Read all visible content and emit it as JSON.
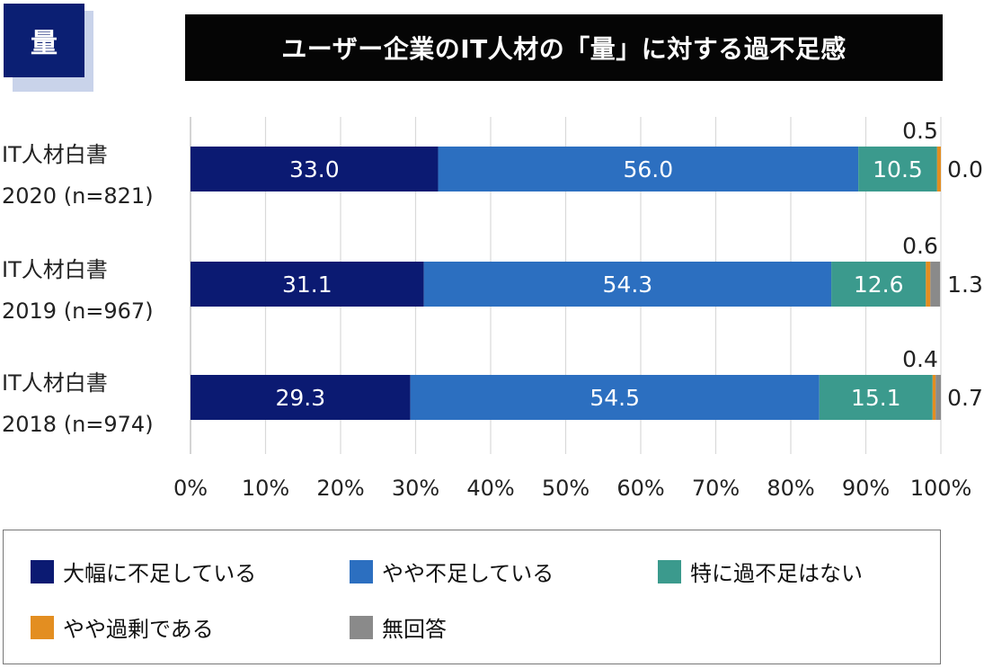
{
  "badge": "量",
  "title": "ユーザー企業のIT人材の「量」に対する過不足感",
  "chart_data": {
    "type": "bar",
    "orientation": "horizontal",
    "stacked": true,
    "title": "ユーザー企業のIT人材の「量」に対する過不足感",
    "categories": [
      [
        "IT人材白書",
        "2020 (n=821)"
      ],
      [
        "IT人材白書",
        "2019 (n=967)"
      ],
      [
        "IT人材白書",
        "2018 (n=974)"
      ]
    ],
    "series": [
      {
        "name": "大幅に不足している",
        "color": "#0b1a72",
        "values": [
          33.0,
          31.1,
          29.3
        ]
      },
      {
        "name": "やや不足している",
        "color": "#2c6fc0",
        "values": [
          56.0,
          54.3,
          54.5
        ]
      },
      {
        "name": "特に過不足はない",
        "color": "#3b9a8d",
        "values": [
          10.5,
          12.6,
          15.1
        ]
      },
      {
        "name": "やや過剰である",
        "color": "#e38e21",
        "values": [
          0.5,
          0.6,
          0.4
        ]
      },
      {
        "name": "無回答",
        "color": "#8a8a8a",
        "values": [
          0.0,
          1.3,
          0.7
        ]
      }
    ],
    "xlim": [
      0,
      100
    ],
    "xticks": [
      "0%",
      "10%",
      "20%",
      "30%",
      "40%",
      "50%",
      "60%",
      "70%",
      "80%",
      "90%",
      "100%"
    ],
    "grid": true,
    "legend": "bottom"
  }
}
